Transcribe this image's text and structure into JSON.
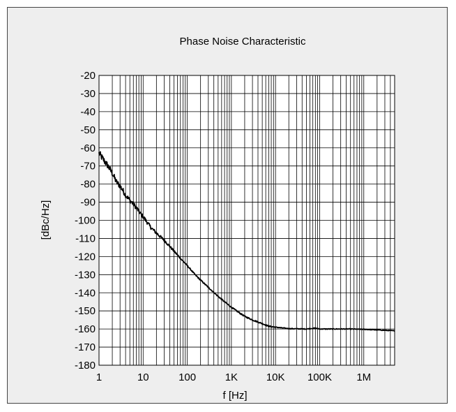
{
  "chart_data": {
    "type": "line",
    "title": "Phase Noise Characteristic",
    "xlabel": "f [Hz]",
    "ylabel": "[dBc/Hz]",
    "x_scale": "log",
    "xlim": [
      1,
      5000000
    ],
    "ylim": [
      -180,
      -20
    ],
    "grid": true,
    "x_ticks": [
      {
        "value": 1,
        "label": "1"
      },
      {
        "value": 10,
        "label": "10"
      },
      {
        "value": 100,
        "label": "100"
      },
      {
        "value": 1000,
        "label": "1K"
      },
      {
        "value": 10000,
        "label": "10K"
      },
      {
        "value": 100000,
        "label": "100K"
      },
      {
        "value": 1000000,
        "label": "1M"
      }
    ],
    "y_ticks": [
      -20,
      -30,
      -40,
      -50,
      -60,
      -70,
      -80,
      -90,
      -100,
      -110,
      -120,
      -130,
      -140,
      -150,
      -160,
      -170,
      -180
    ],
    "series": [
      {
        "line_color": "#000000",
        "x": [
          1,
          1.3,
          1.6,
          2,
          2.5,
          3,
          4,
          5,
          6,
          7,
          8,
          10,
          15,
          20,
          30,
          50,
          70,
          100,
          150,
          200,
          300,
          500,
          700,
          1000,
          1500,
          2000,
          3000,
          5000,
          7000,
          10000,
          20000,
          50000,
          80000,
          100000,
          200000,
          500000,
          1000000,
          2000000,
          5000000
        ],
        "y": [
          -63,
          -67,
          -70,
          -74,
          -79,
          -81,
          -86,
          -89,
          -91,
          -93,
          -95,
          -98,
          -104,
          -107,
          -111,
          -117,
          -121,
          -125,
          -130,
          -133,
          -137,
          -142,
          -145,
          -148,
          -151,
          -153,
          -155,
          -157,
          -158.5,
          -159,
          -159.8,
          -160,
          -159.5,
          -160,
          -160,
          -160,
          -160.2,
          -160.5,
          -161
        ]
      }
    ]
  }
}
